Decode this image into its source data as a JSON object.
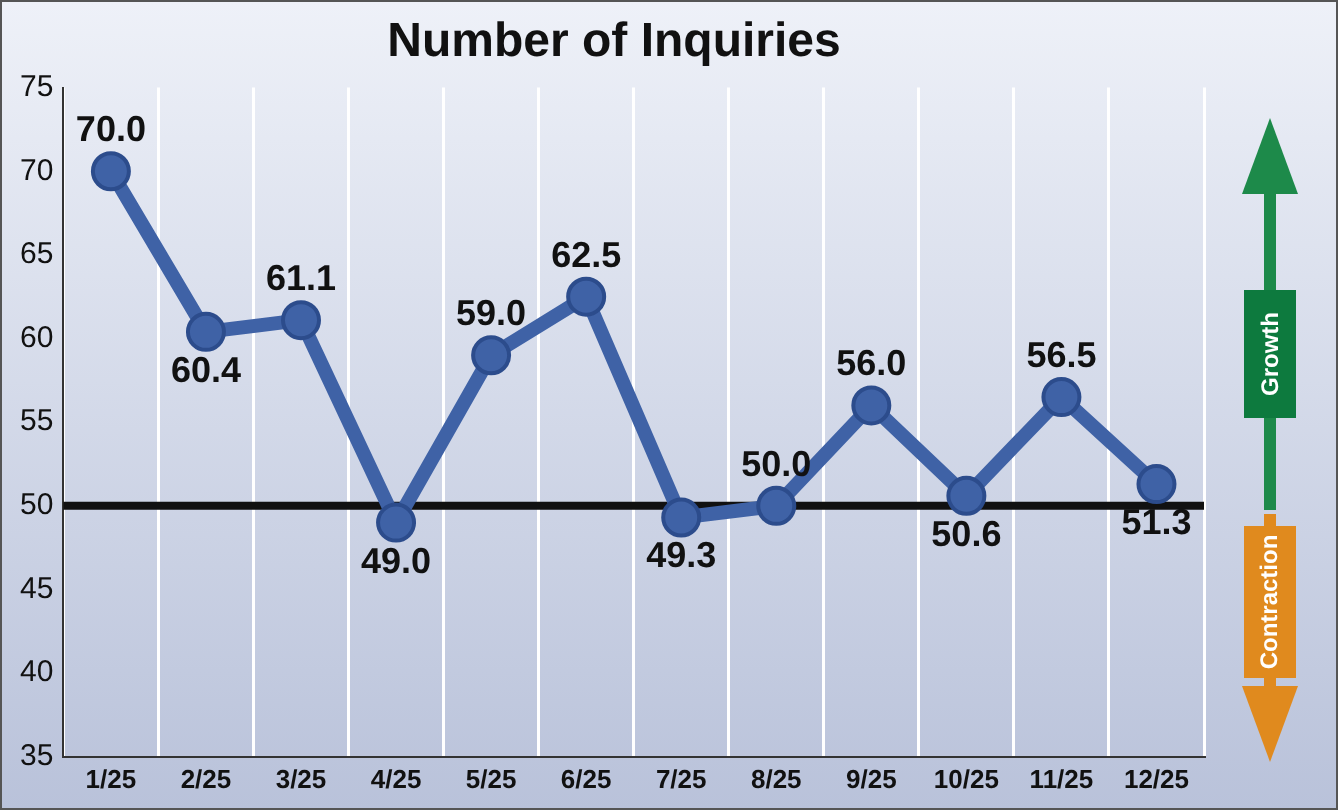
{
  "chart_data": {
    "type": "line",
    "title": "Number of Inquiries",
    "categories": [
      "1/25",
      "2/25",
      "3/25",
      "4/25",
      "5/25",
      "6/25",
      "7/25",
      "8/25",
      "9/25",
      "10/25",
      "11/25",
      "12/25"
    ],
    "series": [
      {
        "color": "#3f62a6",
        "values": [
          70.0,
          60.4,
          61.1,
          49.0,
          59.0,
          62.5,
          49.3,
          50.0,
          56.0,
          50.6,
          56.5,
          51.3
        ],
        "value_labels": [
          "70.0",
          "60.4",
          "61.1",
          "49.0",
          "59.0",
          "62.5",
          "49.3",
          "50.0",
          "56.0",
          "50.6",
          "56.5",
          "51.3"
        ]
      }
    ],
    "ylim": [
      35,
      75
    ],
    "yticks": [
      35,
      40,
      45,
      50,
      55,
      60,
      65,
      70,
      75
    ],
    "grid": "x",
    "marker": "circle",
    "line_style": "solid",
    "legend": false,
    "ref_lines": [
      {
        "axis": "y",
        "value": 50,
        "color": "#111111"
      }
    ],
    "annotations": [
      "Growth",
      "Contraction"
    ]
  }
}
